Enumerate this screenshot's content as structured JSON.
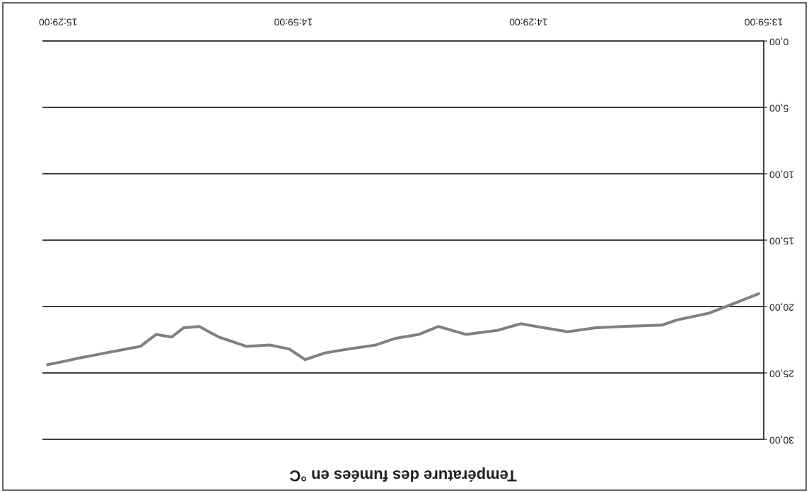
{
  "chart_data": {
    "type": "line",
    "title": "Température des fumées en °C",
    "x": [
      "13:59:30",
      "14:02:30",
      "14:06:00",
      "14:10:00",
      "14:12:00",
      "14:17:00",
      "14:20:30",
      "14:24:00",
      "14:28:00",
      "14:30:00",
      "14:33:00",
      "14:37:00",
      "14:40:30",
      "14:43:00",
      "14:46:00",
      "14:48:30",
      "14:52:00",
      "14:55:00",
      "14:57:30",
      "14:59:30",
      "15:02:00",
      "15:05:00",
      "15:08:30",
      "15:11:00",
      "15:13:00",
      "15:14:30",
      "15:16:30",
      "15:18:30",
      "15:23:00",
      "15:26:30",
      "15:28:00",
      "15:30:30"
    ],
    "series": [
      {
        "color": "#808080",
        "values": [
          19.0,
          19.7,
          20.5,
          21.0,
          21.4,
          21.5,
          21.6,
          21.9,
          21.5,
          21.3,
          21.8,
          22.1,
          21.5,
          22.1,
          22.4,
          22.9,
          23.2,
          23.5,
          24.0,
          23.2,
          22.9,
          23.0,
          22.3,
          21.5,
          21.6,
          22.3,
          22.1,
          23.0,
          23.5,
          23.9,
          24.1,
          24.4
        ]
      }
    ],
    "xlim": [
      "13:59:00",
      "15:31:00"
    ],
    "xticks": [
      "13:59:00",
      "14:29:00",
      "14:59:00",
      "15:29:00"
    ],
    "ylim": [
      0,
      30
    ],
    "yticks": [
      {
        "value": 0,
        "label": "0,00"
      },
      {
        "value": 5,
        "label": "5,00"
      },
      {
        "value": 10,
        "label": "10,00"
      },
      {
        "value": 15,
        "label": "15,00"
      },
      {
        "value": 20,
        "label": "20,00"
      },
      {
        "value": 25,
        "label": "25,00"
      },
      {
        "value": 30,
        "label": "30,00"
      }
    ],
    "grid": true
  }
}
